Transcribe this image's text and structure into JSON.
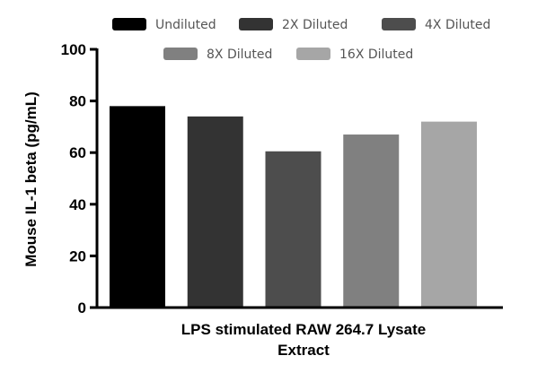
{
  "chart_data": {
    "type": "bar",
    "title": "",
    "xlabel_lines": [
      "LPS stimulated RAW 264.7 Lysate",
      "Extract"
    ],
    "ylabel": "Mouse  IL-1 beta (pg/mL)",
    "ylim": [
      0,
      100
    ],
    "yticks": [
      "0",
      "20",
      "40",
      "60",
      "80",
      "100"
    ],
    "grid": false,
    "legend_position": "top",
    "series": [
      {
        "name": "Undiluted",
        "value": 78,
        "color": "#000000"
      },
      {
        "name": "2X Diluted",
        "value": 74,
        "color": "#333333"
      },
      {
        "name": "4X Diluted",
        "value": 60.5,
        "color": "#4d4d4d"
      },
      {
        "name": "8X Diluted",
        "value": 67,
        "color": "#808080"
      },
      {
        "name": "16X Diluted",
        "value": 72,
        "color": "#a6a6a6"
      }
    ]
  }
}
